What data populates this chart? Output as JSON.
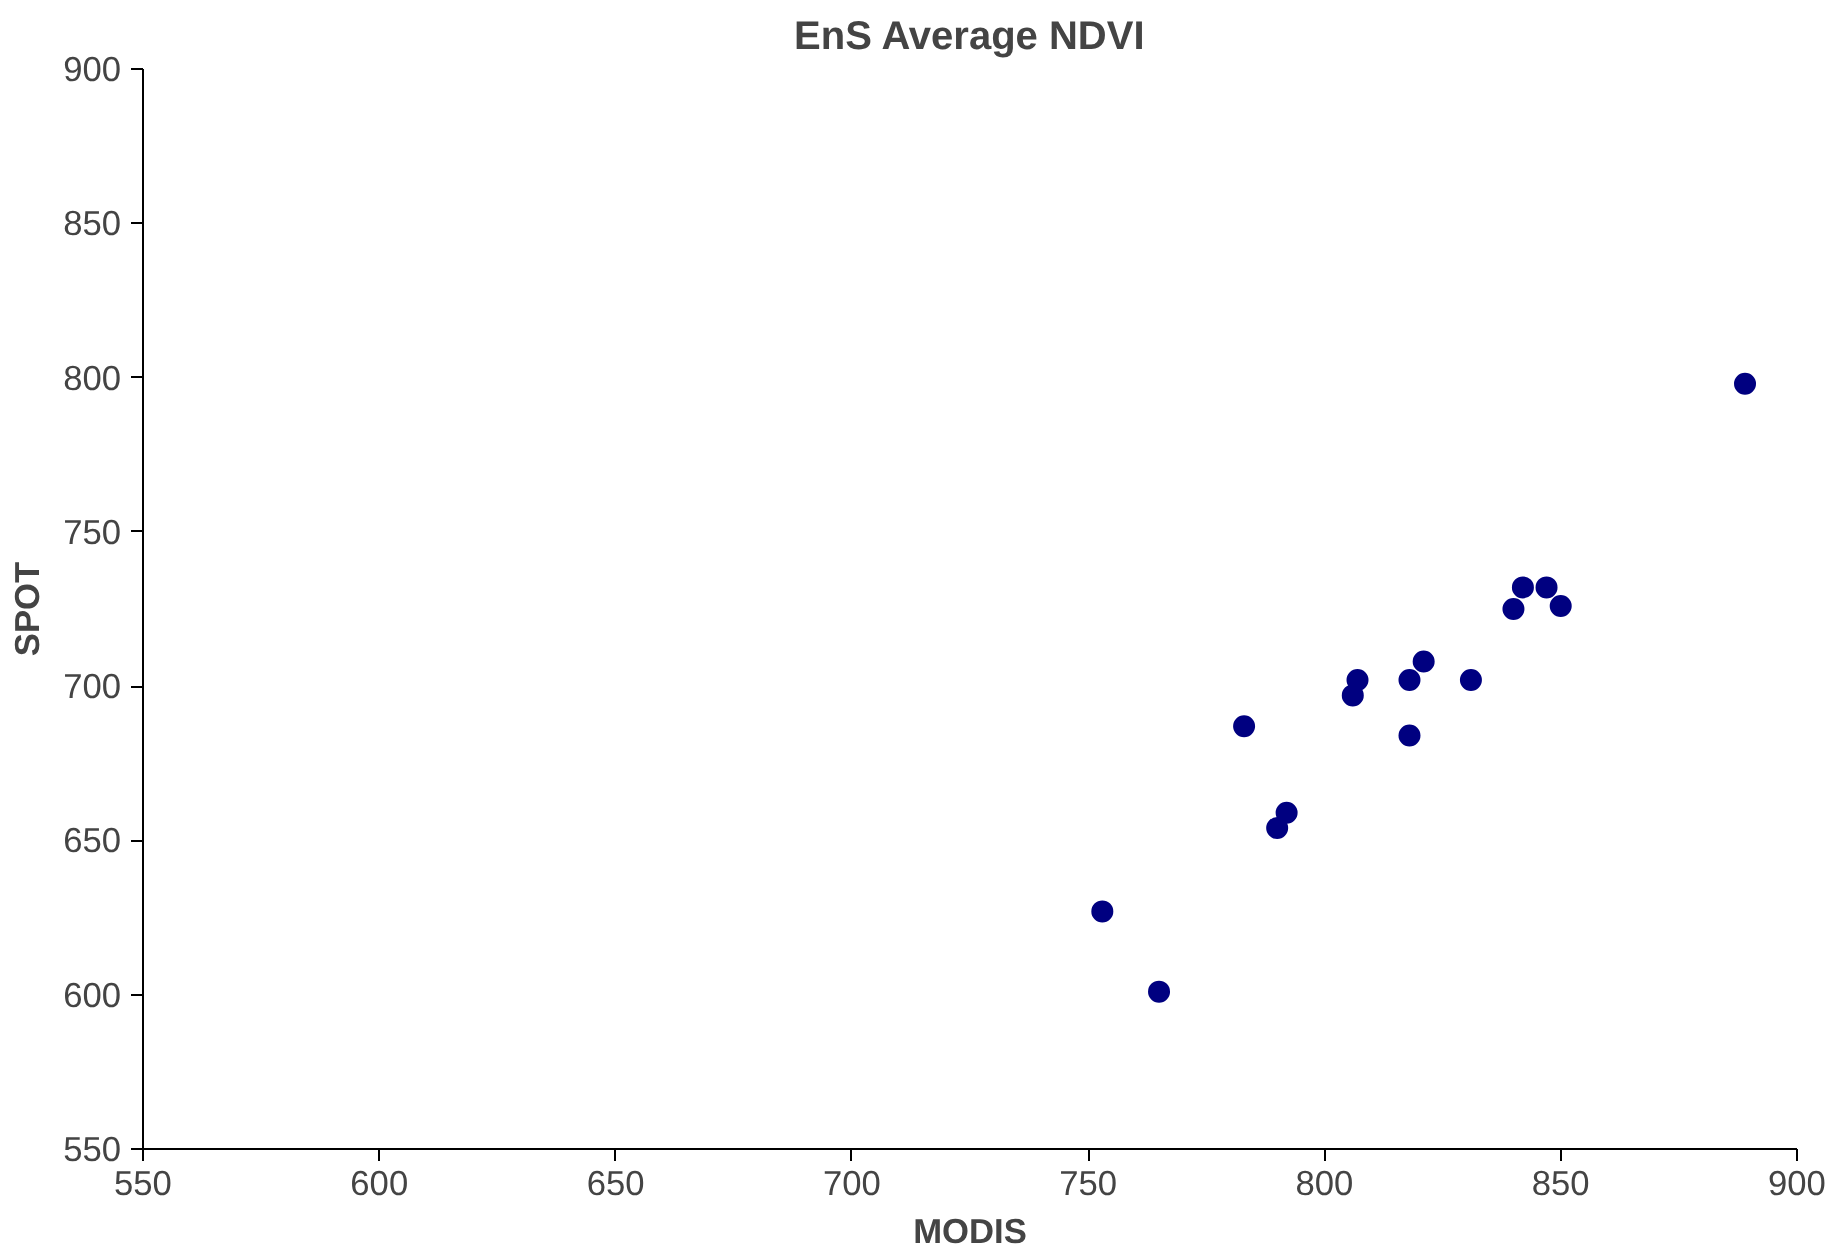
{
  "chart_data": {
    "type": "scatter",
    "title": "EnS Average NDVI",
    "xlabel": "MODIS",
    "ylabel": "SPOT",
    "x": [
      753,
      765,
      783,
      790,
      792,
      806,
      807,
      818,
      818,
      821,
      831,
      840,
      842,
      847,
      850,
      889
    ],
    "series": [
      {
        "color": "#000080",
        "values": [
          627,
          601,
          687,
          654,
          659,
          697,
          702,
          684,
          702,
          708,
          702,
          725,
          732,
          732,
          726,
          798
        ]
      }
    ],
    "xlim": [
      550,
      900
    ],
    "ylim": [
      550,
      900
    ],
    "xticks": [
      550,
      600,
      650,
      700,
      750,
      800,
      850,
      900
    ],
    "yticks": [
      550,
      600,
      650,
      700,
      750,
      800,
      850,
      900
    ],
    "grid": false,
    "marker": "circle"
  }
}
